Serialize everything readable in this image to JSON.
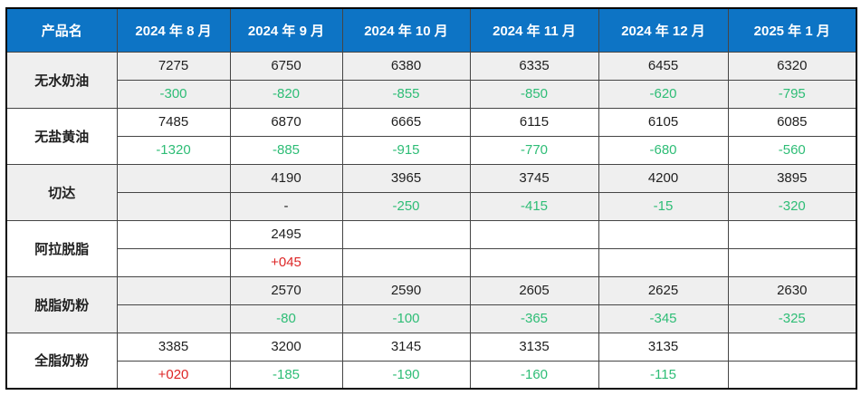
{
  "colors": {
    "header_bg": "#0d74c5",
    "negative_green": "#2ebd76",
    "positive_red": "#dd2626",
    "band_gray": "#efefef"
  },
  "chart_data": {
    "type": "table",
    "title": "",
    "columns": [
      "产品名",
      "2024 年 8 月",
      "2024 年 9 月",
      "2024 年 10 月",
      "2024 年 11 月",
      "2024 年 12 月",
      "2025 年 1 月"
    ],
    "products": [
      {
        "name": "无水奶油",
        "prices": [
          "7275",
          "6750",
          "6380",
          "6335",
          "6455",
          "6320"
        ],
        "changes": [
          "-300",
          "-820",
          "-855",
          "-850",
          "-620",
          "-795"
        ],
        "change_styles": [
          "green",
          "green",
          "green",
          "green",
          "green",
          "green"
        ]
      },
      {
        "name": "无盐黄油",
        "prices": [
          "7485",
          "6870",
          "6665",
          "6115",
          "6105",
          "6085"
        ],
        "changes": [
          "-1320",
          "-885",
          "-915",
          "-770",
          "-680",
          "-560"
        ],
        "change_styles": [
          "green",
          "green",
          "green",
          "green",
          "green",
          "green"
        ]
      },
      {
        "name": "切达",
        "prices": [
          "",
          "4190",
          "3965",
          "3745",
          "4200",
          "3895"
        ],
        "changes": [
          "",
          "-",
          "-250",
          "-415",
          "-15",
          "-320"
        ],
        "change_styles": [
          "",
          "plain",
          "green",
          "green",
          "green",
          "green"
        ]
      },
      {
        "name": "阿拉脱脂",
        "prices": [
          "",
          "2495",
          "",
          "",
          "",
          ""
        ],
        "changes": [
          "",
          "+045",
          "",
          "",
          "",
          ""
        ],
        "change_styles": [
          "",
          "red",
          "",
          "",
          "",
          ""
        ]
      },
      {
        "name": "脱脂奶粉",
        "prices": [
          "",
          "2570",
          "2590",
          "2605",
          "2625",
          "2630"
        ],
        "changes": [
          "",
          "-80",
          "-100",
          "-365",
          "-345",
          "-325"
        ],
        "change_styles": [
          "",
          "green",
          "green",
          "green",
          "green",
          "green"
        ]
      },
      {
        "name": "全脂奶粉",
        "prices": [
          "3385",
          "3200",
          "3145",
          "3135",
          "3135",
          ""
        ],
        "changes": [
          "+020",
          "-185",
          "-190",
          "-160",
          "-115",
          ""
        ],
        "change_styles": [
          "red",
          "green",
          "green",
          "green",
          "green",
          ""
        ]
      }
    ]
  }
}
